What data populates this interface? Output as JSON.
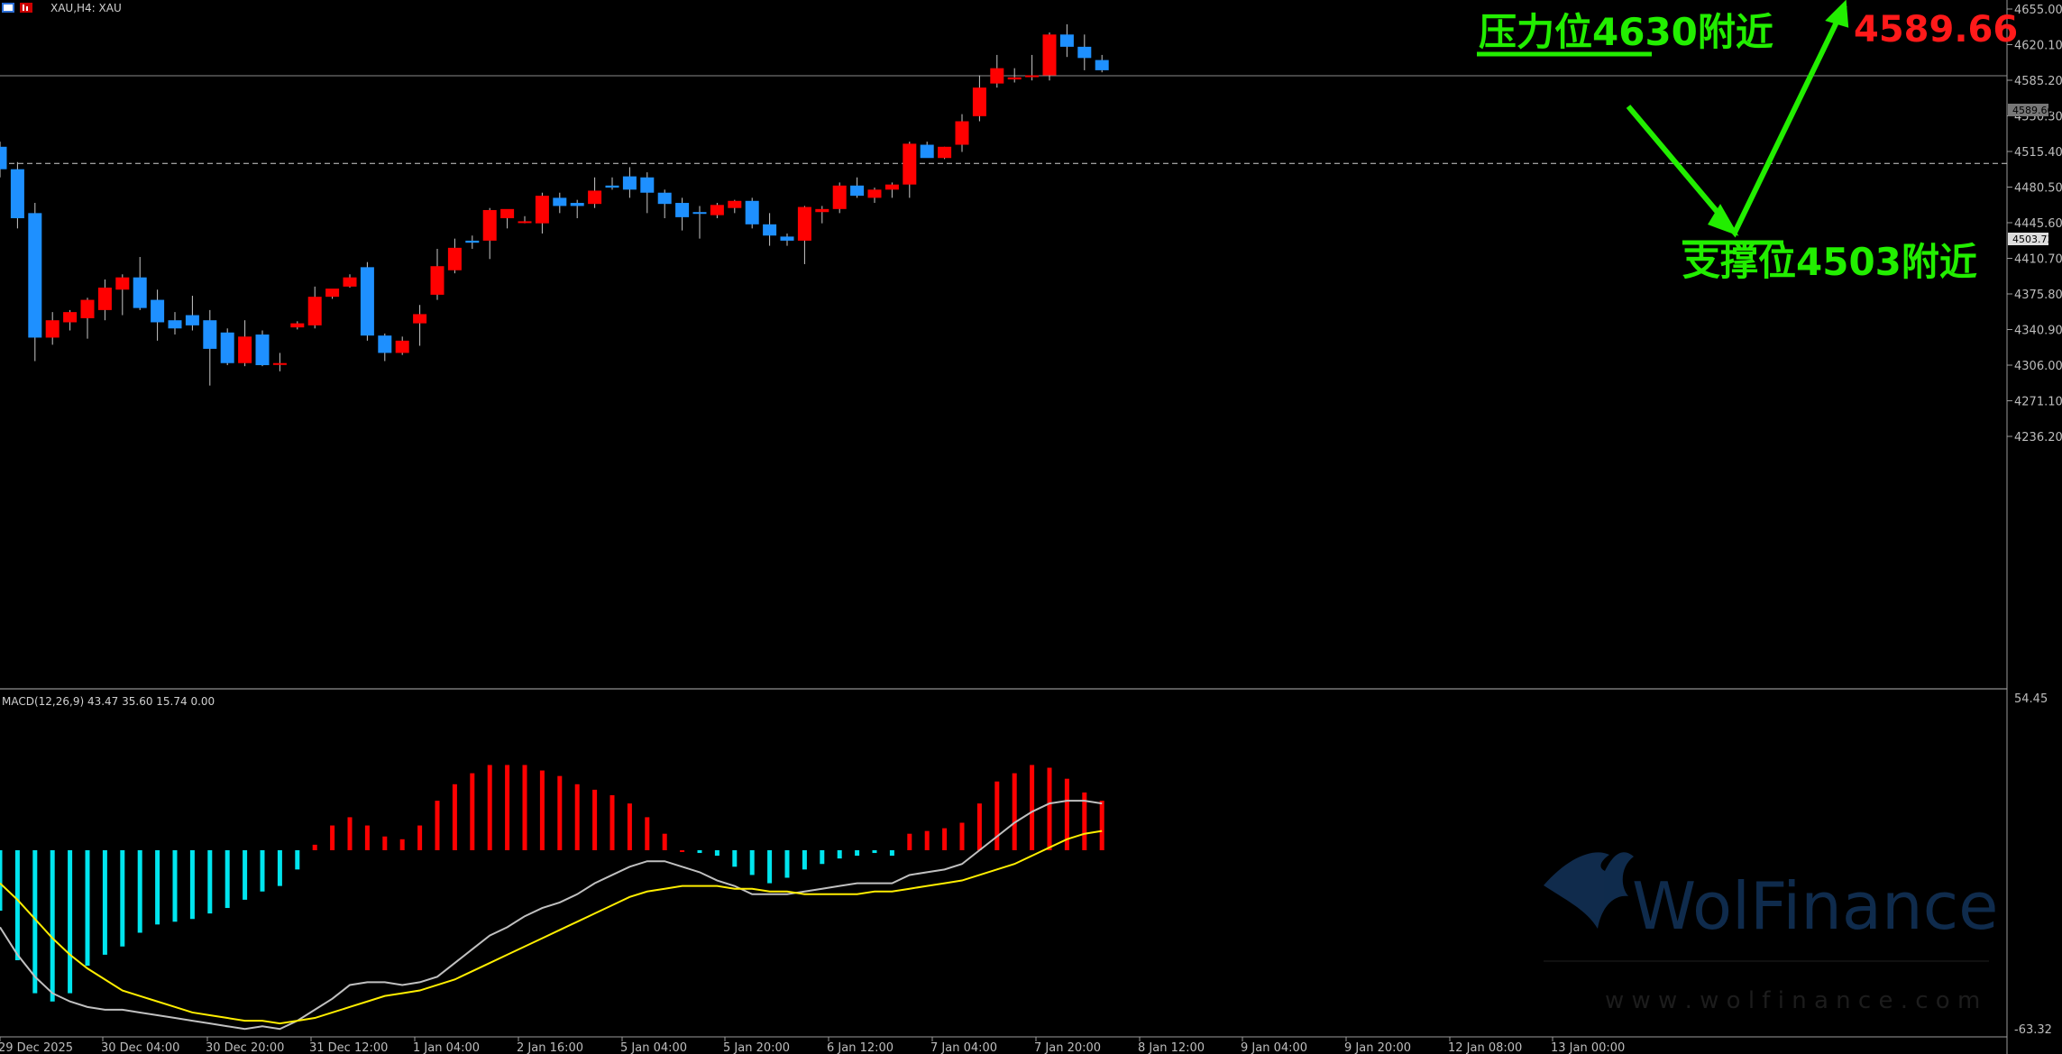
{
  "header": {
    "symbol_label": "XAU,H4:  XAU"
  },
  "annotations": {
    "resistance_label": "压力位4630附近",
    "support_label": "支撑位4503附近",
    "price_label": "4589.66",
    "resistance_level": 4630,
    "support_level": 4503,
    "target_price": 4589.66
  },
  "price_axis": {
    "ticks": [
      "4655.00",
      "4620.10",
      "4585.20",
      "4550.30",
      "4515.40",
      "4480.50",
      "4445.60",
      "4410.70",
      "4375.80",
      "4340.90",
      "4306.00",
      "4271.10",
      "4236.20"
    ],
    "current_price_tag": "4589.66",
    "level_tag": "4503.73"
  },
  "macd_panel": {
    "label": "MACD(12,26,9) 43.47 35.60 15.74 0.00",
    "axis_top": "54.45",
    "axis_bottom": "-63.32"
  },
  "time_axis": {
    "labels": [
      "29 Dec 2025",
      "30 Dec 04:00",
      "30 Dec 20:00",
      "31 Dec 12:00",
      "1 Jan 04:00",
      "2 Jan 16:00",
      "5 Jan 04:00",
      "5 Jan 20:00",
      "6 Jan 12:00",
      "7 Jan 04:00",
      "7 Jan 20:00",
      "8 Jan 12:00",
      "9 Jan 04:00",
      "9 Jan 20:00",
      "12 Jan 08:00",
      "13 Jan 00:00"
    ]
  },
  "watermark": {
    "brand": "WolFinance",
    "url": "w w w . w o l f i n a n c e . c o m"
  },
  "colors": {
    "bull": "#ff0000",
    "bear": "#1e90ff",
    "annotation_green": "#22ee00",
    "price_red": "#ff1a1a",
    "macd_pos": "#ff0000",
    "macd_neg": "#00e5ee",
    "macd_line": "#c0c0c0",
    "signal_line": "#ffee00"
  },
  "chart_data": [
    {
      "type": "candlestick",
      "title": "XAU,H4",
      "series": [
        {
          "name": "XAU",
          "ohlc": [
            [
              4520,
              4525,
              4490,
              4498
            ],
            [
              4498,
              4505,
              4440,
              4450
            ],
            [
              4455,
              4465,
              4310,
              4333
            ],
            [
              4333,
              4358,
              4326,
              4350
            ],
            [
              4348,
              4360,
              4340,
              4358
            ],
            [
              4352,
              4372,
              4332,
              4370
            ],
            [
              4360,
              4390,
              4350,
              4382
            ],
            [
              4380,
              4395,
              4355,
              4392
            ],
            [
              4392,
              4412,
              4360,
              4362
            ],
            [
              4370,
              4380,
              4330,
              4348
            ],
            [
              4350,
              4358,
              4336,
              4342
            ],
            [
              4355,
              4374,
              4340,
              4345
            ],
            [
              4350,
              4360,
              4286,
              4322
            ],
            [
              4338,
              4342,
              4306,
              4308
            ],
            [
              4308,
              4350,
              4305,
              4334
            ],
            [
              4336,
              4340,
              4305,
              4306
            ],
            [
              4307,
              4318,
              4300,
              4308
            ],
            [
              4343,
              4349,
              4341,
              4347
            ],
            [
              4345,
              4383,
              4342,
              4373
            ],
            [
              4373,
              4378,
              4371,
              4381
            ],
            [
              4383,
              4395,
              4382,
              4392
            ],
            [
              4402,
              4407,
              4330,
              4335
            ],
            [
              4335,
              4337,
              4310,
              4318
            ],
            [
              4318,
              4334,
              4316,
              4330
            ],
            [
              4347,
              4365,
              4325,
              4356
            ],
            [
              4375,
              4420,
              4370,
              4403
            ],
            [
              4399,
              4430,
              4396,
              4421
            ],
            [
              4428,
              4433,
              4420,
              4426
            ],
            [
              4428,
              4460,
              4410,
              4458
            ],
            [
              4450,
              4456,
              4440,
              4459
            ],
            [
              4447,
              4452,
              4445,
              4447
            ],
            [
              4445,
              4475,
              4435,
              4472
            ],
            [
              4470,
              4475,
              4455,
              4462
            ],
            [
              4465,
              4468,
              4450,
              4462
            ],
            [
              4464,
              4490,
              4460,
              4477
            ],
            [
              4482,
              4490,
              4478,
              4480
            ],
            [
              4491,
              4500,
              4470,
              4478
            ],
            [
              4490,
              4495,
              4455,
              4475
            ],
            [
              4475,
              4478,
              4450,
              4464
            ],
            [
              4465,
              4470,
              4438,
              4451
            ],
            [
              4456,
              4462,
              4430,
              4455
            ],
            [
              4453,
              4465,
              4450,
              4463
            ],
            [
              4460,
              4468,
              4455,
              4467
            ],
            [
              4467,
              4470,
              4440,
              4444
            ],
            [
              4444,
              4455,
              4423,
              4433
            ],
            [
              4432,
              4435,
              4423,
              4428
            ],
            [
              4428,
              4462,
              4405,
              4461
            ],
            [
              4456,
              4462,
              4445,
              4459
            ],
            [
              4459,
              4485,
              4455,
              4482
            ],
            [
              4482,
              4490,
              4470,
              4472
            ],
            [
              4470,
              4480,
              4465,
              4478
            ],
            [
              4478,
              4485,
              4470,
              4483
            ],
            [
              4483,
              4525,
              4470,
              4523
            ],
            [
              4522,
              4525,
              4510,
              4509
            ],
            [
              4509,
              4520,
              4508,
              4520
            ],
            [
              4522,
              4552,
              4515,
              4545
            ],
            [
              4550,
              4590,
              4545,
              4578
            ],
            [
              4582,
              4610,
              4578,
              4597
            ],
            [
              4586,
              4597,
              4583,
              4588
            ],
            [
              4589,
              4610,
              4585,
              4590
            ],
            [
              4590,
              4632,
              4585,
              4630
            ],
            [
              4630,
              4640,
              4608,
              4618
            ],
            [
              4618,
              4630,
              4595,
              4607
            ],
            [
              4605,
              4610,
              4593,
              4595
            ]
          ]
        }
      ]
    },
    {
      "type": "macd",
      "title": "MACD(12,26,9)",
      "params": [
        12,
        26,
        9
      ],
      "ylim": [
        -63.32,
        54.45
      ],
      "histogram": [
        -22,
        -40,
        -52,
        -55,
        -52,
        -42,
        -38,
        -35,
        -30,
        -27,
        -26,
        -25,
        -23,
        -21,
        -18,
        -15,
        -13,
        -7,
        2,
        9,
        12,
        9,
        5,
        4,
        9,
        18,
        24,
        28,
        31,
        31,
        31,
        29,
        27,
        24,
        22,
        20,
        17,
        12,
        6,
        0,
        -1,
        -2,
        -6,
        -9,
        -12,
        -10,
        -7,
        -5,
        -3,
        -2,
        -1,
        -2,
        6,
        7,
        8,
        10,
        17,
        25,
        28,
        31,
        30,
        26,
        21,
        18
      ],
      "macd_line": [
        -28,
        -38,
        -46,
        -52,
        -55,
        -57,
        -58,
        -58,
        -59,
        -60,
        -61,
        -62,
        -63,
        -64,
        -65,
        -64,
        -65,
        -62,
        -58,
        -54,
        -49,
        -48,
        -48,
        -49,
        -48,
        -46,
        -41,
        -36,
        -31,
        -28,
        -24,
        -21,
        -19,
        -16,
        -12,
        -9,
        -6,
        -4,
        -4,
        -6,
        -8,
        -11,
        -13,
        -16,
        -16,
        -16,
        -15,
        -14,
        -13,
        -12,
        -12,
        -12,
        -9,
        -8,
        -7,
        -5,
        0,
        5,
        10,
        14,
        17,
        18,
        18,
        17
      ],
      "signal_line": [
        -12,
        -18,
        -25,
        -32,
        -38,
        -43,
        -47,
        -51,
        -53,
        -55,
        -57,
        -59,
        -60,
        -61,
        -62,
        -62,
        -63,
        -62,
        -61,
        -59,
        -57,
        -55,
        -53,
        -52,
        -51,
        -49,
        -47,
        -44,
        -41,
        -38,
        -35,
        -32,
        -29,
        -26,
        -23,
        -20,
        -17,
        -15,
        -14,
        -13,
        -13,
        -13,
        -14,
        -14,
        -15,
        -15,
        -16,
        -16,
        -16,
        -16,
        -15,
        -15,
        -14,
        -13,
        -12,
        -11,
        -9,
        -7,
        -5,
        -2,
        1,
        4,
        6,
        7
      ]
    }
  ]
}
